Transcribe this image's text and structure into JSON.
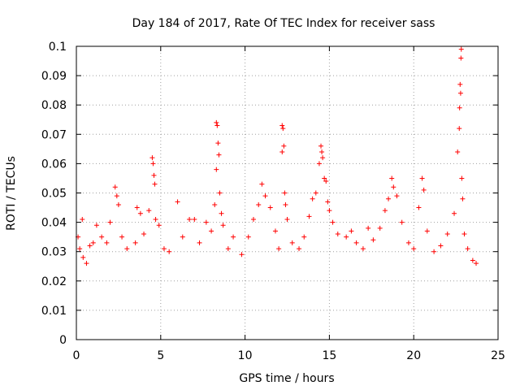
{
  "chart_data": {
    "type": "scatter",
    "title": "Day 184 of 2017, Rate Of TEC Index for receiver sass",
    "xlabel": "GPS time / hours",
    "ylabel": "ROTI / TECUs",
    "xlim": [
      0,
      25
    ],
    "ylim": [
      0,
      0.1
    ],
    "xticks": [
      0,
      5,
      10,
      15,
      20,
      25
    ],
    "xtick_labels": [
      "0",
      "5",
      "10",
      "15",
      "20",
      "25"
    ],
    "yticks": [
      0,
      0.01,
      0.02,
      0.03,
      0.04,
      0.05,
      0.06,
      0.07,
      0.08,
      0.09,
      0.1
    ],
    "ytick_labels": [
      "0",
      "0.01",
      "0.02",
      "0.03",
      "0.04",
      "0.05",
      "0.06",
      "0.07",
      "0.08",
      "0.09",
      "0.1"
    ],
    "grid": true,
    "marker": "plus",
    "color": "#ff0000",
    "series": [
      {
        "points": [
          [
            0.1,
            0.035
          ],
          [
            0.2,
            0.031
          ],
          [
            0.35,
            0.041
          ],
          [
            0.4,
            0.028
          ],
          [
            0.6,
            0.026
          ],
          [
            0.8,
            0.032
          ],
          [
            1.0,
            0.033
          ],
          [
            1.2,
            0.039
          ],
          [
            1.5,
            0.035
          ],
          [
            1.8,
            0.033
          ],
          [
            2.0,
            0.04
          ],
          [
            2.3,
            0.052
          ],
          [
            2.4,
            0.049
          ],
          [
            2.5,
            0.046
          ],
          [
            2.7,
            0.035
          ],
          [
            3.0,
            0.031
          ],
          [
            3.5,
            0.033
          ],
          [
            3.6,
            0.045
          ],
          [
            3.8,
            0.043
          ],
          [
            4.0,
            0.036
          ],
          [
            4.3,
            0.044
          ],
          [
            4.5,
            0.062
          ],
          [
            4.55,
            0.06
          ],
          [
            4.6,
            0.056
          ],
          [
            4.65,
            0.053
          ],
          [
            4.7,
            0.041
          ],
          [
            4.9,
            0.039
          ],
          [
            5.2,
            0.031
          ],
          [
            5.5,
            0.03
          ],
          [
            6.0,
            0.047
          ],
          [
            6.3,
            0.035
          ],
          [
            6.7,
            0.041
          ],
          [
            7.0,
            0.041
          ],
          [
            7.3,
            0.033
          ],
          [
            7.7,
            0.04
          ],
          [
            8.0,
            0.037
          ],
          [
            8.2,
            0.046
          ],
          [
            8.3,
            0.074
          ],
          [
            8.35,
            0.073
          ],
          [
            8.4,
            0.067
          ],
          [
            8.45,
            0.063
          ],
          [
            8.3,
            0.058
          ],
          [
            8.5,
            0.05
          ],
          [
            8.6,
            0.043
          ],
          [
            8.7,
            0.039
          ],
          [
            9.0,
            0.031
          ],
          [
            9.3,
            0.035
          ],
          [
            9.8,
            0.029
          ],
          [
            10.2,
            0.035
          ],
          [
            10.5,
            0.041
          ],
          [
            10.8,
            0.046
          ],
          [
            11.0,
            0.053
          ],
          [
            11.2,
            0.049
          ],
          [
            11.5,
            0.045
          ],
          [
            11.8,
            0.037
          ],
          [
            12.0,
            0.031
          ],
          [
            12.2,
            0.073
          ],
          [
            12.25,
            0.072
          ],
          [
            12.3,
            0.066
          ],
          [
            12.2,
            0.064
          ],
          [
            12.35,
            0.05
          ],
          [
            12.4,
            0.046
          ],
          [
            12.5,
            0.041
          ],
          [
            12.8,
            0.033
          ],
          [
            13.2,
            0.031
          ],
          [
            13.5,
            0.035
          ],
          [
            13.8,
            0.042
          ],
          [
            14.0,
            0.048
          ],
          [
            14.2,
            0.05
          ],
          [
            14.4,
            0.06
          ],
          [
            14.5,
            0.066
          ],
          [
            14.55,
            0.064
          ],
          [
            14.6,
            0.062
          ],
          [
            14.7,
            0.055
          ],
          [
            14.8,
            0.054
          ],
          [
            14.9,
            0.047
          ],
          [
            15.0,
            0.044
          ],
          [
            15.2,
            0.04
          ],
          [
            15.5,
            0.036
          ],
          [
            16.0,
            0.035
          ],
          [
            16.3,
            0.037
          ],
          [
            16.6,
            0.033
          ],
          [
            17.0,
            0.031
          ],
          [
            17.3,
            0.038
          ],
          [
            17.6,
            0.034
          ],
          [
            18.0,
            0.038
          ],
          [
            18.3,
            0.044
          ],
          [
            18.5,
            0.048
          ],
          [
            18.7,
            0.055
          ],
          [
            18.8,
            0.052
          ],
          [
            19.0,
            0.049
          ],
          [
            19.3,
            0.04
          ],
          [
            19.7,
            0.033
          ],
          [
            20.0,
            0.031
          ],
          [
            20.3,
            0.045
          ],
          [
            20.5,
            0.055
          ],
          [
            20.6,
            0.051
          ],
          [
            20.8,
            0.037
          ],
          [
            21.2,
            0.03
          ],
          [
            21.6,
            0.032
          ],
          [
            22.0,
            0.036
          ],
          [
            22.4,
            0.043
          ],
          [
            22.6,
            0.064
          ],
          [
            22.7,
            0.072
          ],
          [
            22.72,
            0.079
          ],
          [
            22.75,
            0.087
          ],
          [
            22.78,
            0.084
          ],
          [
            22.8,
            0.096
          ],
          [
            22.82,
            0.099
          ],
          [
            22.85,
            0.055
          ],
          [
            22.9,
            0.048
          ],
          [
            23.0,
            0.036
          ],
          [
            23.2,
            0.031
          ],
          [
            23.5,
            0.027
          ],
          [
            23.7,
            0.026
          ]
        ]
      }
    ]
  }
}
